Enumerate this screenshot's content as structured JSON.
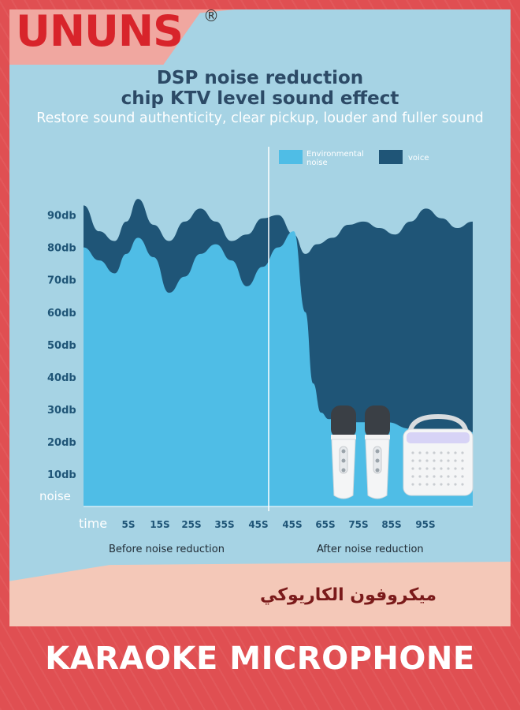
{
  "brand": {
    "logo_text": "UNUNS",
    "registered_mark": "®"
  },
  "header": {
    "title_line1": "DSP noise reduction",
    "title_line2": "chip KTV level sound effect",
    "subtitle": "Restore sound authenticity, clear pickup, louder and fuller sound"
  },
  "chart_data": {
    "type": "area",
    "legend": [
      {
        "name": "Environmental noise",
        "color": "#4fbde6"
      },
      {
        "name": "voice",
        "color": "#1f5577"
      }
    ],
    "legend_placement": "top-right",
    "y_ticks": [
      "noise",
      "10db",
      "20db",
      "30db",
      "40db",
      "50db",
      "60db",
      "70db",
      "80db",
      "90db"
    ],
    "x_label": "time",
    "x_ticks": [
      "5S",
      "15S",
      "25S",
      "35S",
      "45S",
      "45S",
      "65S",
      "75S",
      "85S",
      "95S"
    ],
    "section_labels": [
      "Before noise reduction",
      "After noise reduction"
    ],
    "ylim_db": [
      0,
      94
    ],
    "x_range": [
      0,
      100
    ],
    "series": [
      {
        "name": "Environmental noise",
        "points": [
          [
            0,
            80
          ],
          [
            4,
            76
          ],
          [
            8,
            72
          ],
          [
            11,
            78
          ],
          [
            14,
            83
          ],
          [
            18,
            77
          ],
          [
            22,
            66
          ],
          [
            26,
            71
          ],
          [
            30,
            78
          ],
          [
            34,
            81
          ],
          [
            38,
            76
          ],
          [
            42,
            68
          ],
          [
            46,
            74
          ],
          [
            50,
            80
          ],
          [
            54,
            85
          ],
          [
            57,
            60
          ],
          [
            59,
            38
          ],
          [
            61,
            29
          ],
          [
            63,
            27
          ],
          [
            70,
            26
          ],
          [
            78,
            26
          ],
          [
            84,
            24
          ],
          [
            90,
            23
          ],
          [
            95,
            23
          ],
          [
            100,
            23
          ]
        ]
      },
      {
        "name": "voice",
        "points": [
          [
            0,
            93
          ],
          [
            4,
            85
          ],
          [
            8,
            82
          ],
          [
            11,
            88
          ],
          [
            14,
            95
          ],
          [
            18,
            87
          ],
          [
            22,
            82
          ],
          [
            26,
            88
          ],
          [
            30,
            92
          ],
          [
            34,
            88
          ],
          [
            38,
            82
          ],
          [
            42,
            84
          ],
          [
            46,
            89
          ],
          [
            50,
            90
          ],
          [
            54,
            84
          ],
          [
            57,
            78
          ],
          [
            60,
            81
          ],
          [
            64,
            83
          ],
          [
            68,
            87
          ],
          [
            72,
            88
          ],
          [
            76,
            86
          ],
          [
            80,
            84
          ],
          [
            84,
            88
          ],
          [
            88,
            92
          ],
          [
            92,
            89
          ],
          [
            96,
            86
          ],
          [
            100,
            88
          ]
        ]
      }
    ]
  },
  "product": {
    "arabic_title": "ميكروفون الكاريوكي"
  },
  "banner": {
    "text": "KARAOKE MICROPHONE"
  },
  "colors": {
    "background": "#e04f52",
    "panel": "#a6d3e4",
    "noise": "#4fbde6",
    "voice": "#1f5577",
    "axis_text": "#1f5577"
  }
}
